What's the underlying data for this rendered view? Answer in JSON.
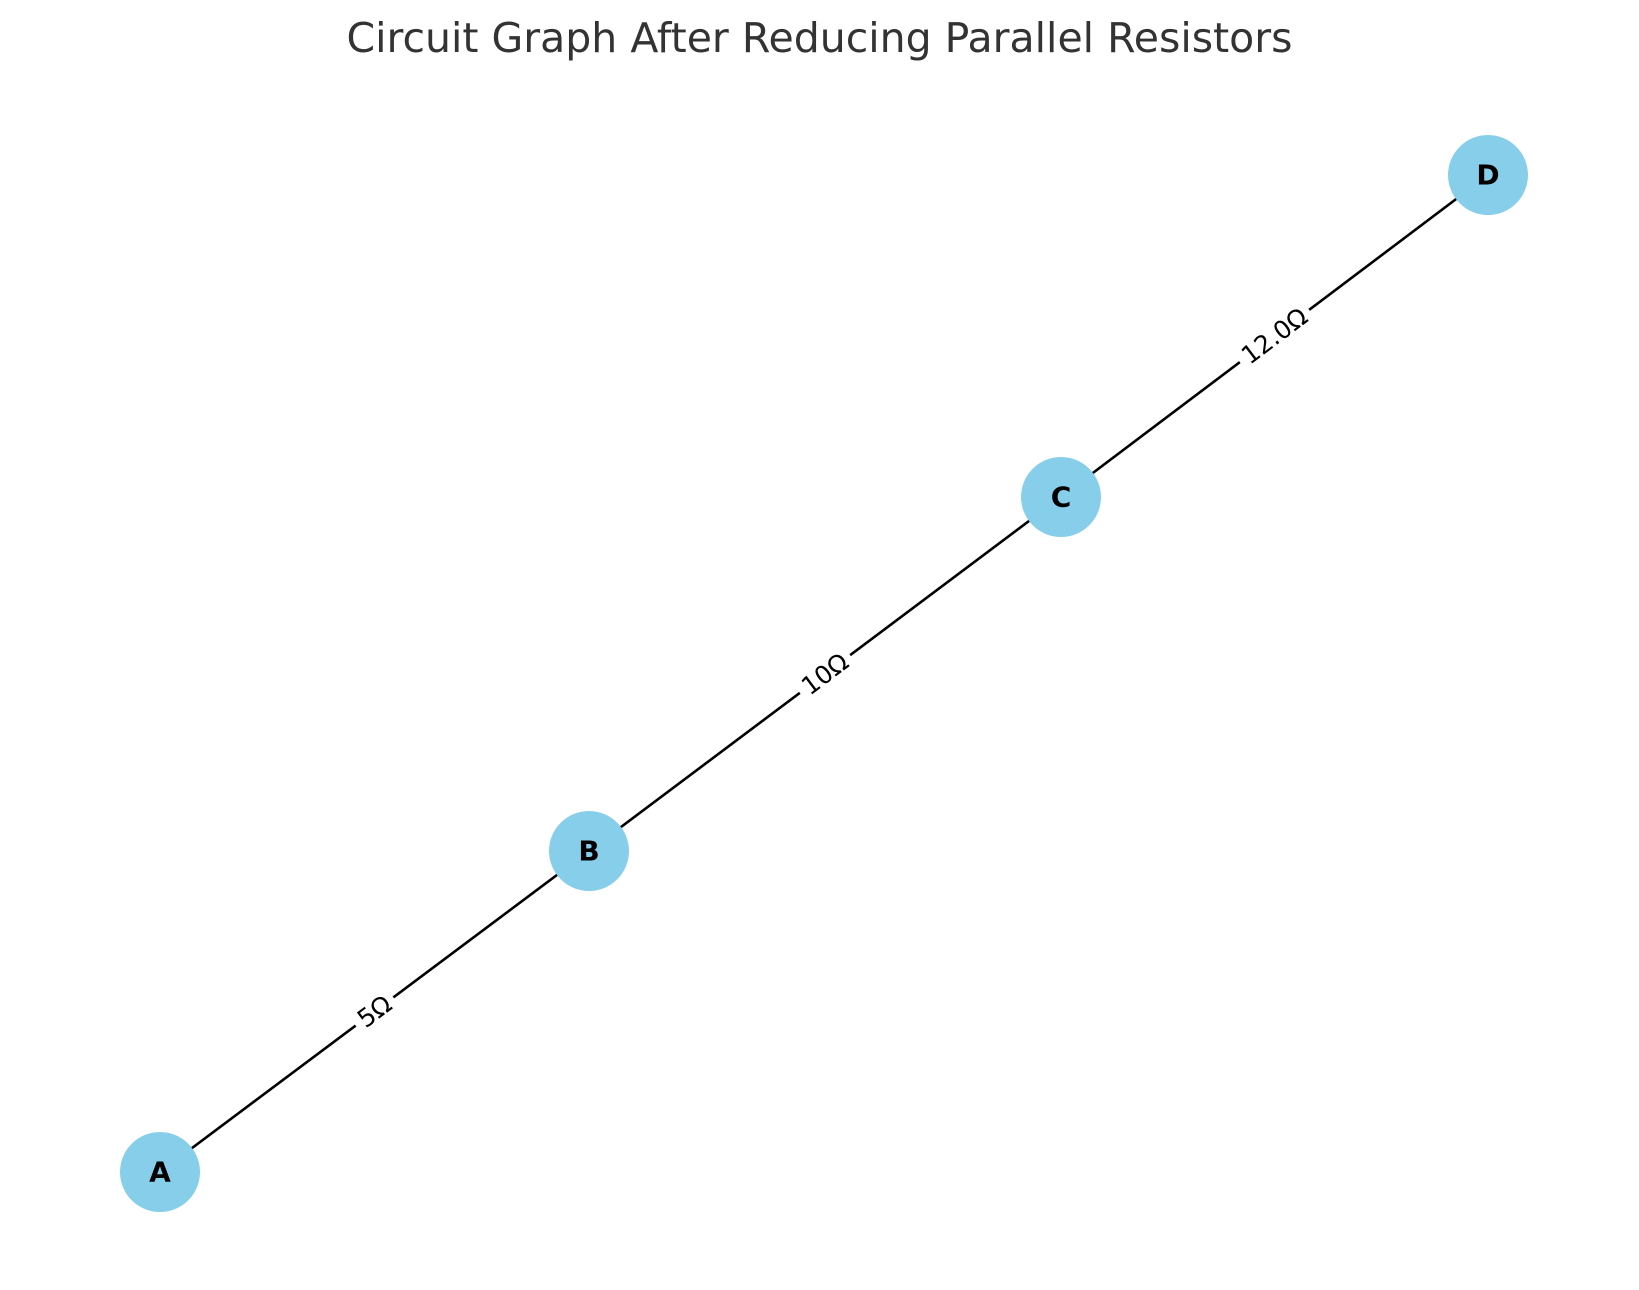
{
  "title": "Circuit Graph After Reducing Parallel Resistors",
  "colors": {
    "node_fill": "#87CEEB",
    "edge": "#000000",
    "title": "#333333"
  },
  "nodes": [
    {
      "id": "A",
      "label": "A"
    },
    {
      "id": "B",
      "label": "B"
    },
    {
      "id": "C",
      "label": "C"
    },
    {
      "id": "D",
      "label": "D"
    }
  ],
  "edges": [
    {
      "from": "A",
      "to": "B",
      "label": "5Ω"
    },
    {
      "from": "B",
      "to": "C",
      "label": "10Ω"
    },
    {
      "from": "C",
      "to": "D",
      "label": "12.0Ω"
    }
  ]
}
